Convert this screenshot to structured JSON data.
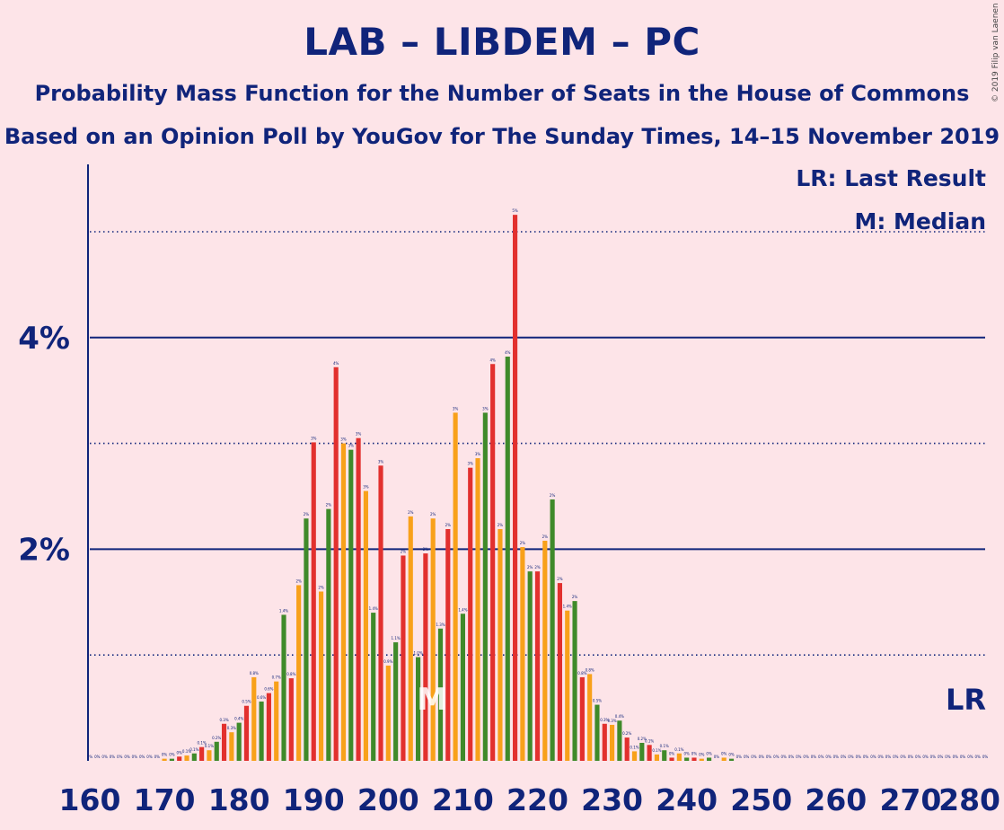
{
  "title": "LAB – LIBDEM – PC",
  "subtitle": "Probability Mass Function for the Number of Seats in the House of Commons",
  "subtitle2": "Based on an Opinion Poll by YouGov for The Sunday Times, 14–15 November 2019",
  "copyright": "© 2019 Filip van Laenen",
  "legend": {
    "last_result": "LR: Last Result",
    "median": "M: Median"
  },
  "colors": {
    "background": "#fde4e8",
    "text": "#10247a",
    "bar_red": "#e2302e",
    "bar_orange": "#f8a11a",
    "bar_green": "#3f8a2a",
    "median_marker": "#ffffff"
  },
  "chart_data": {
    "type": "bar",
    "x": [
      160,
      161,
      162,
      163,
      164,
      165,
      166,
      167,
      168,
      169,
      170,
      171,
      172,
      173,
      174,
      175,
      176,
      177,
      178,
      179,
      180,
      181,
      182,
      183,
      184,
      185,
      186,
      187,
      188,
      189,
      190,
      191,
      192,
      193,
      194,
      195,
      196,
      197,
      198,
      199,
      200,
      201,
      202,
      203,
      204,
      205,
      206,
      207,
      208,
      209,
      210,
      211,
      212,
      213,
      214,
      215,
      216,
      217,
      218,
      219,
      220,
      221,
      222,
      223,
      224,
      225,
      226,
      227,
      228,
      229,
      230,
      231,
      232,
      233,
      234,
      235,
      236,
      237,
      238,
      239,
      240,
      241,
      242,
      243,
      244,
      245,
      246,
      247,
      248,
      249,
      250,
      251,
      252,
      253,
      254,
      255,
      256,
      257,
      258,
      259,
      260,
      261,
      262,
      263,
      264,
      265,
      266,
      267,
      268,
      269,
      270,
      271,
      272,
      273,
      274,
      275,
      276,
      277,
      278,
      279,
      280
    ],
    "values": [
      0,
      0,
      0,
      0,
      0,
      0,
      0,
      0,
      0,
      0,
      0.02,
      0.02,
      0.04,
      0.05,
      0.07,
      0.13,
      0.1,
      0.18,
      0.35,
      0.27,
      0.36,
      0.52,
      0.79,
      0.56,
      0.64,
      0.75,
      1.38,
      0.78,
      1.66,
      2.29,
      3.01,
      1.6,
      2.38,
      3.72,
      3.0,
      2.94,
      3.05,
      2.55,
      1.4,
      2.79,
      0.9,
      1.12,
      1.94,
      2.31,
      0.98,
      1.96,
      2.29,
      1.25,
      2.19,
      3.29,
      1.39,
      2.77,
      2.86,
      3.29,
      3.75,
      2.19,
      3.82,
      5.16,
      2.02,
      1.79,
      1.79,
      2.08,
      2.47,
      1.68,
      1.42,
      1.51,
      0.79,
      0.82,
      0.53,
      0.35,
      0.34,
      0.38,
      0.22,
      0.09,
      0.17,
      0.15,
      0.06,
      0.1,
      0.03,
      0.07,
      0.03,
      0.03,
      0.02,
      0.03,
      0,
      0.03,
      0.02,
      0,
      0,
      0,
      0,
      0,
      0,
      0,
      0,
      0,
      0,
      0,
      0,
      0,
      0,
      0,
      0,
      0,
      0,
      0,
      0,
      0,
      0,
      0,
      0,
      0,
      0,
      0,
      0,
      0,
      0,
      0,
      0,
      0,
      0
    ],
    "value_labels": [
      "0%",
      "0%",
      "0%",
      "0%",
      "0%",
      "0%",
      "0%",
      "0%",
      "0%",
      "0%",
      "0%",
      "0%",
      "0%",
      "0.1%",
      "0.1%",
      "0.1%",
      "0.1%",
      "0.2%",
      "0.3%",
      "0.3%",
      "0.4%",
      "0.5%",
      "0.8%",
      "0.6%",
      "0.6%",
      "0.7%",
      "1.4%",
      "0.8%",
      "2%",
      "2%",
      "3%",
      "2%",
      "2%",
      "4%",
      "3%",
      "3%",
      "3%",
      "3%",
      "1.4%",
      "3%",
      "0.9%",
      "1.1%",
      "2%",
      "2%",
      "1.0%",
      "2%",
      "2%",
      "1.3%",
      "2%",
      "3%",
      "1.4%",
      "3%",
      "3%",
      "3%",
      "4%",
      "2%",
      "4%",
      "5%",
      "2%",
      "2%",
      "2%",
      "2%",
      "2%",
      "2%",
      "1.4%",
      "2%",
      "0.8%",
      "0.8%",
      "0.5%",
      "0.3%",
      "0.3%",
      "0.4%",
      "0.2%",
      "0.1%",
      "0.2%",
      "0.1%",
      "0.1%",
      "0.1%",
      "0%",
      "0.1%",
      "0%",
      "0%",
      "0%",
      "0%",
      "0%",
      "0%",
      "0%",
      "0%",
      "0%",
      "0%",
      "0%",
      "0%",
      "0%",
      "0%",
      "0%",
      "0%",
      "0%",
      "0%",
      "0%",
      "0%",
      "0%",
      "0%",
      "0%",
      "0%",
      "0%",
      "0%",
      "0%",
      "0%",
      "0%",
      "0%",
      "0%",
      "0%",
      "0%",
      "0%",
      "0%",
      "0%",
      "0%",
      "0%",
      "0%",
      "0%",
      "0%"
    ],
    "bar_colors_cycle": [
      "red",
      "orange",
      "green"
    ],
    "median": 206,
    "median_label": "M",
    "last_result_label": "LR",
    "xlim": [
      160,
      280
    ],
    "xticks": [
      160,
      170,
      180,
      190,
      200,
      210,
      220,
      230,
      240,
      250,
      260,
      270,
      280
    ],
    "ylim": [
      0,
      5.6
    ],
    "yticks": [
      2,
      4
    ],
    "ytick_labels": [
      "2%",
      "4%"
    ],
    "minor_gridlines": [
      1,
      3,
      5
    ],
    "grid": true
  }
}
